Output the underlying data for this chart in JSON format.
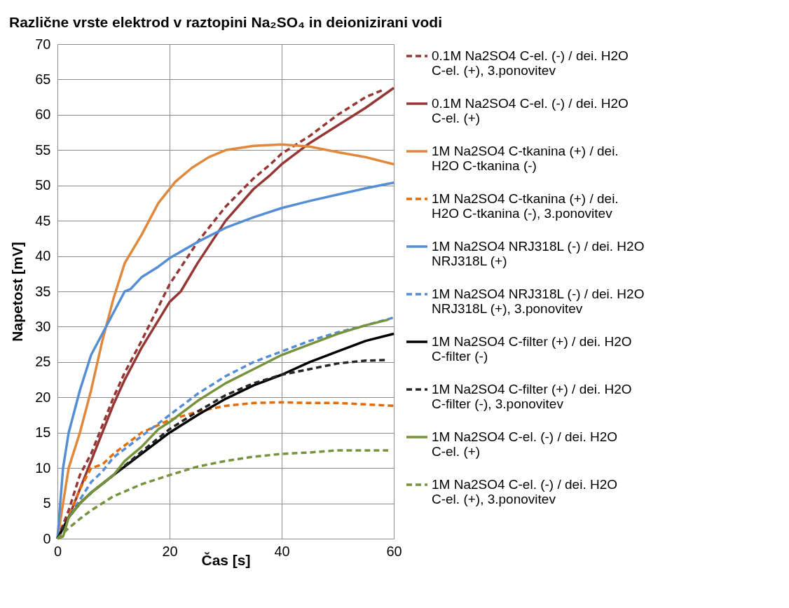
{
  "chart_data": {
    "type": "line",
    "title": "Različne vrste elektrod v raztopini Na₂SO₄  in deionizirani vodi",
    "xlabel": "Čas [s]",
    "ylabel": "Napetost [mV]",
    "xlim": [
      0,
      60
    ],
    "xticks": [
      0,
      20,
      40,
      60
    ],
    "ylim": [
      0,
      70
    ],
    "yticks": [
      0,
      5,
      10,
      15,
      20,
      25,
      30,
      35,
      40,
      45,
      50,
      55,
      60,
      65,
      70
    ],
    "grid": true,
    "legend": "right",
    "marker": "none",
    "series": [
      {
        "name": "0.1M Na2SO4 C-el. (-) / dei. H2O C-el. (+), 3.ponovitev",
        "color": "#953735",
        "line_style": "dashed",
        "x": [
          0,
          2,
          4,
          6,
          8,
          10,
          12,
          15,
          20,
          25,
          30,
          35,
          38,
          40,
          45,
          50,
          55,
          58
        ],
        "values": [
          0,
          4,
          9,
          12,
          16,
          20,
          23.5,
          28,
          36,
          42,
          47,
          51,
          53,
          54.5,
          57,
          60,
          62.5,
          63.5
        ]
      },
      {
        "name": "0.1M Na2SO4 C-el. (-) / dei. H2O C-el. (+)",
        "color": "#953735",
        "line_style": "solid",
        "x": [
          0,
          2,
          4,
          6,
          8,
          10,
          12,
          15,
          20,
          22,
          25,
          30,
          35,
          38,
          40,
          45,
          50,
          55,
          60
        ],
        "values": [
          0,
          3,
          7,
          11,
          15,
          19,
          22.5,
          27,
          33.5,
          35,
          39,
          45,
          49.5,
          51.5,
          53,
          56,
          58.5,
          61,
          63.8
        ]
      },
      {
        "name": "1M Na2SO4 C-tkanina (+) / dei. H2O C-tkanina (-)",
        "color": "#e0883c",
        "line_style": "solid",
        "x": [
          0,
          1,
          2,
          4,
          6,
          8,
          10,
          12,
          15,
          18,
          19,
          20,
          21,
          24,
          27,
          30,
          35,
          40,
          45,
          50,
          55,
          60
        ],
        "values": [
          0,
          5,
          10,
          15,
          21,
          28,
          34,
          39,
          43,
          47.5,
          48.5,
          49.5,
          50.5,
          52.5,
          54,
          55,
          55.6,
          55.8,
          55.5,
          54.7,
          54,
          53
        ]
      },
      {
        "name": "1M Na2SO4 C-tkanina (+) / dei. H2O C-tkanina (-), 3.ponovitev",
        "color": "#e46c0a",
        "line_style": "dashed",
        "x": [
          0,
          2,
          4,
          6,
          8,
          10,
          15,
          20,
          25,
          30,
          35,
          40,
          45,
          50,
          55,
          60
        ],
        "values": [
          0,
          3,
          7,
          10,
          10.5,
          12,
          15,
          16.8,
          18,
          18.8,
          19.2,
          19.3,
          19.2,
          19.2,
          19,
          18.8
        ]
      },
      {
        "name": "1M Na2SO4 NRJ318L (-) / dei. H2O NRJ318L (+)",
        "color": "#558ed5",
        "line_style": "solid",
        "x": [
          0,
          1,
          2,
          3,
          4,
          6,
          8,
          10,
          12,
          13,
          15,
          18,
          20,
          25,
          30,
          35,
          40,
          45,
          50,
          55,
          60
        ],
        "values": [
          0,
          10,
          15,
          18,
          21,
          26,
          29,
          32,
          35,
          35.3,
          37,
          38.5,
          39.7,
          42,
          44,
          45.5,
          46.8,
          47.8,
          48.7,
          49.6,
          50.4
        ]
      },
      {
        "name": "1M Na2SO4 NRJ318L (-) / dei. H2O NRJ318L (+), 3.ponovitev",
        "color": "#558ed5",
        "line_style": "dashed",
        "x": [
          0,
          2,
          4,
          6,
          8,
          10,
          15,
          20,
          25,
          30,
          35,
          40,
          45,
          50,
          55,
          60
        ],
        "values": [
          0,
          3,
          5.5,
          8,
          9.5,
          11.5,
          14.5,
          17.5,
          20.5,
          23,
          25,
          26.5,
          28,
          29.2,
          30.2,
          31.3
        ]
      },
      {
        "name": "1M Na2SO4 C-filter (+) / dei. H2O C-filter (-)",
        "color": "#000000",
        "line_style": "solid",
        "x": [
          0,
          2,
          4,
          6,
          10,
          15,
          20,
          25,
          30,
          35,
          40,
          45,
          50,
          55,
          60
        ],
        "values": [
          0,
          3,
          5,
          6.5,
          9,
          12,
          15,
          17.5,
          19.8,
          21.7,
          23.2,
          25,
          26.5,
          28,
          29
        ]
      },
      {
        "name": "1M Na2SO4 C-filter (+) / dei. H2O C-filter (-), 3.ponovitev",
        "color": "#262626",
        "line_style": "dashed",
        "x": [
          0,
          2,
          4,
          6,
          10,
          15,
          20,
          25,
          30,
          35,
          40,
          45,
          50,
          55,
          59
        ],
        "values": [
          0,
          3,
          5,
          6.5,
          9,
          12.3,
          15.5,
          18,
          20.3,
          22,
          23.2,
          24,
          24.8,
          25.2,
          25.3
        ]
      },
      {
        "name": "1M Na2SO4 C-el. (-) / dei. H2O C-el. (+)",
        "color": "#77933c",
        "line_style": "solid",
        "x": [
          0,
          1,
          2,
          4,
          6,
          10,
          12,
          15,
          18,
          20,
          25,
          30,
          35,
          40,
          45,
          50,
          55,
          59
        ],
        "values": [
          0,
          0.3,
          3,
          5,
          6.5,
          9,
          11,
          13,
          15.5,
          16.5,
          19.5,
          22,
          24,
          26,
          27.5,
          29,
          30.2,
          31
        ]
      },
      {
        "name": "1M Na2SO4 C-el. (-) / dei. H2O C-el. (+), 3.ponovitev",
        "color": "#77933c",
        "line_style": "dashed",
        "x": [
          0,
          2,
          4,
          6,
          10,
          15,
          20,
          25,
          30,
          35,
          40,
          45,
          50,
          55,
          59
        ],
        "values": [
          0,
          1.5,
          2.8,
          4,
          6,
          7.7,
          9,
          10.2,
          11,
          11.6,
          12,
          12.2,
          12.5,
          12.5,
          12.5
        ]
      }
    ]
  }
}
